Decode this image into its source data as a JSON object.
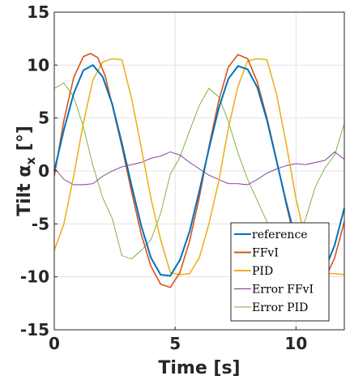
{
  "chart_data": {
    "type": "line",
    "xlabel": "Time [s]",
    "ylabel": "Tilt α_x [°]",
    "ylabel_main": "Tilt α",
    "ylabel_sub": "x",
    "ylabel_unit": " [°]",
    "xlim": [
      0,
      12
    ],
    "ylim": [
      -15,
      15
    ],
    "xticks": [
      "0",
      "5",
      "10"
    ],
    "yticks": [
      "15",
      "10",
      "5",
      "0",
      "-5",
      "-10",
      "-15"
    ],
    "grid": true,
    "legend_position": "bottom-right",
    "series": [
      {
        "name": "reference",
        "color": "#0072BD",
        "x": [
          0,
          0.4,
          0.8,
          1.2,
          1.6,
          2.0,
          2.4,
          2.8,
          3.2,
          3.6,
          4.0,
          4.4,
          4.8,
          5.2,
          5.6,
          6.0,
          6.4,
          6.8,
          7.2,
          7.6,
          8.0,
          8.4,
          8.8,
          9.2,
          9.6,
          10.0,
          10.4,
          10.8,
          11.2,
          11.6,
          12.0
        ],
        "values": [
          0,
          3.9,
          7.3,
          9.5,
          10.0,
          8.9,
          6.3,
          2.6,
          -1.4,
          -5.2,
          -8.2,
          -9.8,
          -9.9,
          -8.4,
          -5.7,
          -1.9,
          2.1,
          5.9,
          8.7,
          9.9,
          9.6,
          7.9,
          4.8,
          0.9,
          -3.0,
          -6.6,
          -9.1,
          -10.0,
          -9.3,
          -7.0,
          -3.5
        ]
      },
      {
        "name": "FFvI",
        "color": "#D95319",
        "x": [
          0,
          0.4,
          0.8,
          1.2,
          1.5,
          1.8,
          2.1,
          2.4,
          2.8,
          3.2,
          3.6,
          4.0,
          4.4,
          4.8,
          5.2,
          5.6,
          6.0,
          6.4,
          6.8,
          7.2,
          7.6,
          8.0,
          8.4,
          8.8,
          9.2,
          9.6,
          10.0,
          10.4,
          10.8,
          11.2,
          11.6,
          12.0
        ],
        "values": [
          -0.5,
          4.8,
          8.8,
          10.8,
          11.1,
          10.7,
          9.0,
          6.2,
          2.3,
          -2.0,
          -6.0,
          -9.0,
          -10.7,
          -11.0,
          -9.6,
          -6.6,
          -2.5,
          2.3,
          6.6,
          9.8,
          11.0,
          10.6,
          8.4,
          5.0,
          1.0,
          -3.2,
          -7.0,
          -9.6,
          -10.8,
          -10.2,
          -8.2,
          -4.8
        ]
      },
      {
        "name": "PID",
        "color": "#EDB120",
        "x": [
          0,
          0.4,
          0.8,
          1.2,
          1.6,
          2.0,
          2.4,
          2.8,
          3.2,
          3.6,
          4.0,
          4.4,
          4.8,
          5.2,
          5.6,
          6.0,
          6.4,
          6.8,
          7.2,
          7.6,
          8.0,
          8.4,
          8.8,
          9.2,
          9.6,
          10.0,
          10.4,
          10.8,
          11.2,
          11.6,
          12.0
        ],
        "values": [
          -7.5,
          -5.0,
          -0.5,
          4.5,
          8.6,
          10.3,
          10.6,
          10.5,
          6.8,
          2.2,
          -2.6,
          -6.5,
          -9.6,
          -9.8,
          -9.7,
          -8.2,
          -5.0,
          -1.0,
          4.0,
          8.0,
          10.4,
          10.6,
          10.5,
          7.2,
          2.5,
          -2.6,
          -6.6,
          -9.4,
          -9.7,
          -9.7,
          -9.8
        ]
      },
      {
        "name": "Error FFvI",
        "color": "#7E2F8E",
        "x": [
          0,
          0.4,
          0.8,
          1.2,
          1.6,
          2.0,
          2.4,
          2.8,
          3.2,
          3.6,
          4.0,
          4.4,
          4.8,
          5.2,
          5.6,
          6.0,
          6.4,
          6.8,
          7.2,
          7.6,
          8.0,
          8.4,
          8.8,
          9.2,
          9.6,
          10.0,
          10.4,
          10.8,
          11.2,
          11.6,
          12.0
        ],
        "values": [
          0.3,
          -0.8,
          -1.3,
          -1.3,
          -1.2,
          -0.5,
          0.0,
          0.4,
          0.6,
          0.8,
          1.2,
          1.4,
          1.8,
          1.5,
          0.8,
          0.2,
          -0.4,
          -0.8,
          -1.2,
          -1.2,
          -1.3,
          -0.8,
          -0.2,
          0.2,
          0.5,
          0.7,
          0.6,
          0.8,
          1.0,
          1.8,
          1.1
        ]
      },
      {
        "name": "Error PID",
        "color": "#77AC30",
        "x": [
          0,
          0.4,
          0.8,
          1.2,
          1.6,
          2.0,
          2.4,
          2.8,
          3.2,
          3.6,
          4.0,
          4.4,
          4.8,
          5.2,
          5.6,
          6.0,
          6.4,
          6.8,
          7.2,
          7.6,
          8.0,
          8.4,
          8.8,
          9.2,
          9.6,
          10.0,
          10.4,
          10.8,
          11.2,
          11.6,
          12.0
        ],
        "values": [
          7.8,
          8.3,
          7.0,
          4.2,
          0.5,
          -2.5,
          -4.5,
          -8.0,
          -8.3,
          -7.5,
          -6.5,
          -4.0,
          -0.3,
          1.3,
          3.8,
          6.2,
          7.8,
          7.0,
          4.7,
          1.7,
          -0.8,
          -2.8,
          -4.8,
          -8.2,
          -7.5,
          -6.5,
          -4.5,
          -1.5,
          0.3,
          1.5,
          4.5
        ]
      }
    ]
  }
}
